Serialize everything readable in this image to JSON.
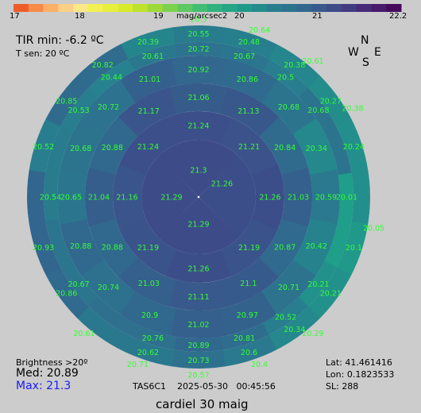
{
  "colors": {
    "background": "#cccccc",
    "value_label": "#33ff33",
    "max_text": "#1a1aff"
  },
  "colorbar": {
    "unit": "mag/arcsec2",
    "min": 17,
    "max": 22.2,
    "ticks": [
      "17",
      "18",
      "19",
      "20",
      "21",
      "22.2"
    ],
    "colormap": "viridis"
  },
  "annotations": {
    "tir_min": "TIR min: -6.2 ºC",
    "t_sen": "T sen: 20 ºC",
    "brightness": "Brightness >20º",
    "med": "Med: 20.89",
    "max": "Max: 21.3",
    "lat": "Lat: 41.461416",
    "lon": "Lon: 0.1823533",
    "sl": "SL:  288",
    "device_time": "TAS6C1    2025-05-30   00:45:56",
    "caption": "cardiel 30 maig"
  },
  "compass": {
    "n": "N",
    "s": "S",
    "e": "E",
    "w": "W"
  },
  "chart_data": {
    "type": "heatmap",
    "projection": "polar sky map (zenith at center)",
    "colorbar_label": "mag/arcsec2",
    "vmin": 17,
    "vmax": 22.2,
    "cells": [
      {
        "ring": 1,
        "az": 0,
        "value": 21.3
      },
      {
        "ring": 1,
        "az": 60,
        "value": 21.26
      },
      {
        "ring": 1,
        "az": 180,
        "value": 21.29
      },
      {
        "ring": 1,
        "az": 270,
        "value": 21.29
      },
      {
        "ring": 2,
        "az": 0,
        "value": 21.24
      },
      {
        "ring": 2,
        "az": 45,
        "value": 21.21
      },
      {
        "ring": 2,
        "az": 90,
        "value": 21.26
      },
      {
        "ring": 2,
        "az": 135,
        "value": 21.19
      },
      {
        "ring": 2,
        "az": 180,
        "value": 21.26
      },
      {
        "ring": 2,
        "az": 225,
        "value": 21.19
      },
      {
        "ring": 2,
        "az": 270,
        "value": 21.16
      },
      {
        "ring": 2,
        "az": 315,
        "value": 21.24
      },
      {
        "ring": 3,
        "az": 0,
        "value": 21.06
      },
      {
        "ring": 3,
        "az": 30,
        "value": 21.13
      },
      {
        "ring": 3,
        "az": 60,
        "value": 20.84
      },
      {
        "ring": 3,
        "az": 90,
        "value": 21.03
      },
      {
        "ring": 3,
        "az": 120,
        "value": 20.87
      },
      {
        "ring": 3,
        "az": 150,
        "value": 21.1
      },
      {
        "ring": 3,
        "az": 180,
        "value": 21.11
      },
      {
        "ring": 3,
        "az": 210,
        "value": 21.03
      },
      {
        "ring": 3,
        "az": 240,
        "value": 20.88
      },
      {
        "ring": 3,
        "az": 270,
        "value": 21.04
      },
      {
        "ring": 3,
        "az": 300,
        "value": 20.88
      },
      {
        "ring": 3,
        "az": 330,
        "value": 21.17
      },
      {
        "ring": 4,
        "az": 0,
        "value": 20.92
      },
      {
        "ring": 4,
        "az": 22.5,
        "value": 20.86
      },
      {
        "ring": 4,
        "az": 45,
        "value": 20.68
      },
      {
        "ring": 4,
        "az": 67.5,
        "value": 20.34
      },
      {
        "ring": 4,
        "az": 90,
        "value": 20.59
      },
      {
        "ring": 4,
        "az": 112.5,
        "value": 20.42
      },
      {
        "ring": 4,
        "az": 135,
        "value": 20.71
      },
      {
        "ring": 4,
        "az": 157.5,
        "value": 20.97
      },
      {
        "ring": 4,
        "az": 180,
        "value": 21.02
      },
      {
        "ring": 4,
        "az": 202.5,
        "value": 20.9
      },
      {
        "ring": 4,
        "az": 225,
        "value": 20.74
      },
      {
        "ring": 4,
        "az": 247.5,
        "value": 20.88
      },
      {
        "ring": 4,
        "az": 270,
        "value": 20.65
      },
      {
        "ring": 4,
        "az": 292.5,
        "value": 20.68
      },
      {
        "ring": 4,
        "az": 315,
        "value": 20.72
      },
      {
        "ring": 4,
        "az": 337.5,
        "value": 21.01
      },
      {
        "ring": 5,
        "az": 0,
        "value": 20.72
      },
      {
        "ring": 5,
        "az": 18,
        "value": 20.67
      },
      {
        "ring": 5,
        "az": 36,
        "value": 20.5
      },
      {
        "ring": 5,
        "az": 54,
        "value": 20.68
      },
      {
        "ring": 5,
        "az": 90,
        "value": 20.01
      },
      {
        "ring": 5,
        "az": 126,
        "value": 20.21
      },
      {
        "ring": 5,
        "az": 144,
        "value": 20.52
      },
      {
        "ring": 5,
        "az": 162,
        "value": 20.81
      },
      {
        "ring": 5,
        "az": 180,
        "value": 20.89
      },
      {
        "ring": 5,
        "az": 198,
        "value": 20.76
      },
      {
        "ring": 5,
        "az": 234,
        "value": 20.67
      },
      {
        "ring": 5,
        "az": 270,
        "value": 20.54
      },
      {
        "ring": 5,
        "az": 306,
        "value": 20.53
      },
      {
        "ring": 5,
        "az": 324,
        "value": 20.44
      },
      {
        "ring": 5,
        "az": 342,
        "value": 20.61
      },
      {
        "ring": 6,
        "az": 0,
        "value": 20.55
      },
      {
        "ring": 6,
        "az": 18,
        "value": 20.48
      },
      {
        "ring": 6,
        "az": 36,
        "value": 20.38
      },
      {
        "ring": 6,
        "az": 54,
        "value": 20.27
      },
      {
        "ring": 6,
        "az": 72,
        "value": 20.24
      },
      {
        "ring": 6,
        "az": 108,
        "value": 20.1
      },
      {
        "ring": 6,
        "az": 126,
        "value": 20.21
      },
      {
        "ring": 6,
        "az": 144,
        "value": 20.34
      },
      {
        "ring": 6,
        "az": 162,
        "value": 20.6
      },
      {
        "ring": 6,
        "az": 180,
        "value": 20.73
      },
      {
        "ring": 6,
        "az": 198,
        "value": 20.62
      },
      {
        "ring": 6,
        "az": 234,
        "value": 20.86
      },
      {
        "ring": 6,
        "az": 252,
        "value": 20.93
      },
      {
        "ring": 6,
        "az": 288,
        "value": 20.52
      },
      {
        "ring": 6,
        "az": 306,
        "value": 20.85
      },
      {
        "ring": 6,
        "az": 324,
        "value": 20.82
      },
      {
        "ring": 6,
        "az": 342,
        "value": 20.39
      },
      {
        "ring": 7,
        "az": 0,
        "value": 20.5
      },
      {
        "ring": 7,
        "az": 20,
        "value": 20.64
      },
      {
        "ring": 7,
        "az": 40,
        "value": 20.61
      },
      {
        "ring": 7,
        "az": 60,
        "value": 20.38
      },
      {
        "ring": 7,
        "az": 100,
        "value": 20.05
      },
      {
        "ring": 7,
        "az": 140,
        "value": 20.29
      },
      {
        "ring": 7,
        "az": 160,
        "value": 20.4
      },
      {
        "ring": 7,
        "az": 180,
        "value": 20.57
      },
      {
        "ring": 7,
        "az": 200,
        "value": 20.71
      },
      {
        "ring": 7,
        "az": 220,
        "value": 20.61
      }
    ]
  }
}
